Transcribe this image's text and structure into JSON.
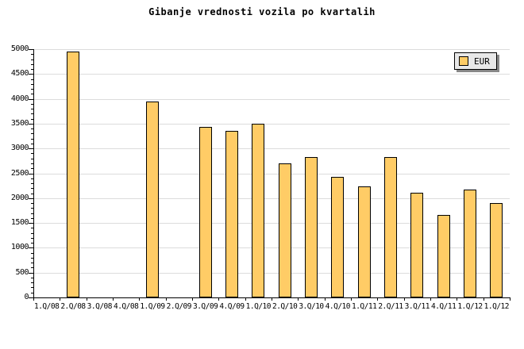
{
  "window": {
    "background": "#ffffff"
  },
  "chart_data": {
    "type": "bar",
    "title": "Gibanje vrednosti vozila po kvartalih",
    "legend": [
      "EUR"
    ],
    "legend_position": "top-right",
    "categories": [
      "1.Q/08",
      "2.Q/08",
      "3.Q/08",
      "4.Q/08",
      "1.Q/09",
      "2.Q/09",
      "3.Q/09",
      "4.Q/09",
      "1.Q/10",
      "2.Q/10",
      "3.Q/10",
      "4.Q/10",
      "1.Q/11",
      "2.Q/11",
      "3.Q/11",
      "4.Q/11",
      "1.Q/12",
      "1.Q/12"
    ],
    "series": [
      {
        "name": "EUR",
        "values": [
          null,
          4950,
          null,
          null,
          3950,
          null,
          3430,
          3350,
          3500,
          2700,
          2830,
          2430,
          2240,
          2830,
          2110,
          1660,
          2170,
          1900
        ]
      }
    ],
    "xlabel": "",
    "ylabel": "",
    "ylim": [
      0,
      5000
    ],
    "ytick_major": 500,
    "ytick_minor": 100,
    "grid": "horizontal-major",
    "colors": {
      "bar_fill": "#FFCC66",
      "bar_border": "#000000",
      "gridline": "#DCDCDC",
      "axis": "#000000",
      "legend_bg": "#E8E8E8",
      "legend_shadow": "#888888",
      "text": "#000000"
    }
  }
}
